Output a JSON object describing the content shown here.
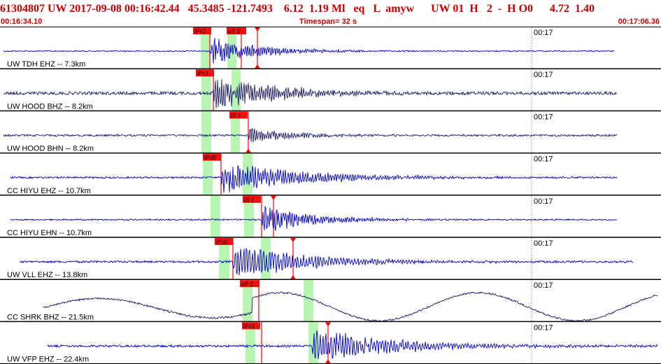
{
  "header": {
    "event_id": "61304807",
    "network": "UW",
    "datetime": "2017-09-08 00:16:42.44",
    "lat": "45.3485",
    "lon": "-121.7493",
    "depth": "6.12",
    "magnitude": "1.19 Ml",
    "etype": "eq",
    "review": "L amyw",
    "net_code": "UW 01",
    "quality": "H",
    "num": "2",
    "flags": "- H O0",
    "rms": "4.72",
    "gap": "1.40",
    "title_line": "61304807 UW 2017-09-08 00:16:42.44   45.3485 -121.7493    6.12  1.19 Ml   eq   L  amyw      UW 01  H   2  -  H O0      4.72  1.40",
    "start_time": "00:16:34.10",
    "timespan": "Timespan=  32 s",
    "end_time": "00:17:06.36"
  },
  "colors": {
    "header_text": "#cc0000",
    "trace_blue": "#0000cc",
    "trace_dark": "#1a1a66",
    "pick_red": "#ff0000",
    "window_green": "#b8f5b0",
    "separator": "#000000"
  },
  "panels": [
    {
      "label": "UW TDH EHZ -- 7.3km",
      "time_mark": "00:17",
      "trace_color": "blue",
      "picks": [
        "iPc0",
        "eS 2"
      ]
    },
    {
      "label": "UW HOOD BHZ -- 8.2km",
      "time_mark": "00:17",
      "trace_color": "dark",
      "picks": [
        "iPc1"
      ]
    },
    {
      "label": "UW HOOD BHN -- 8.2km",
      "time_mark": "00:17",
      "trace_color": "dark",
      "picks": [
        "iS 1"
      ]
    },
    {
      "label": "CC HIYU EHZ -- 10.7km",
      "time_mark": "00:17",
      "trace_color": "blue",
      "picks": [
        "iPd0"
      ]
    },
    {
      "label": "CC HIYU EHN -- 10.7km",
      "time_mark": "00:17",
      "trace_color": "blue",
      "picks": [
        "iS 1"
      ]
    },
    {
      "label": "UW VLL EHZ -- 13.8km",
      "time_mark": "00:17",
      "trace_color": "blue",
      "picks": [
        "iPd0"
      ]
    },
    {
      "label": "CC SHRK BHZ -- 21.5km",
      "time_mark": "00:17",
      "trace_color": "dark",
      "picks": [
        "eP 2"
      ]
    },
    {
      "label": "UW VFP EHZ -- 22.4km",
      "time_mark": "00:17",
      "trace_color": "blue",
      "picks": [
        "iPc1"
      ]
    }
  ]
}
